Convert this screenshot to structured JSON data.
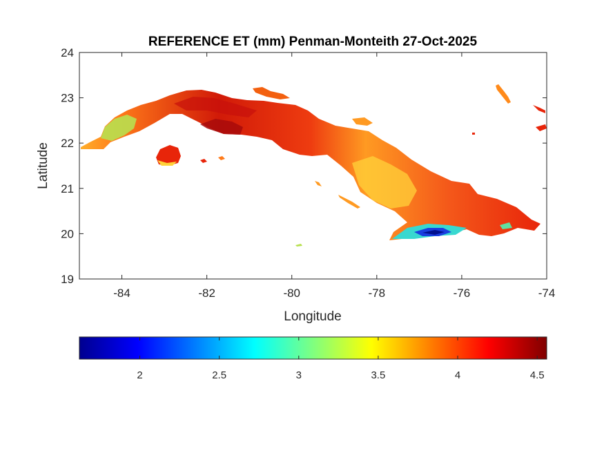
{
  "chart_data": {
    "type": "heatmap",
    "title": "REFERENCE ET (mm) Penman-Monteith 27-Oct-2025",
    "xlabel": "Longitude",
    "ylabel": "Latitude",
    "xlim": [
      -85,
      -74
    ],
    "ylim": [
      19,
      24
    ],
    "x_ticks": [
      -84,
      -82,
      -80,
      -78,
      -76,
      -74
    ],
    "y_ticks": [
      19,
      20,
      21,
      22,
      23,
      24
    ],
    "colorbar": {
      "colormap": "jet",
      "range": [
        1.62,
        4.56
      ],
      "ticks": [
        2,
        2.5,
        3,
        3.5,
        4,
        4.5
      ],
      "placement": "bottom"
    },
    "colors": {
      "background": "#ffffff",
      "dominant_high": "#e8250a",
      "low_area": "#1a3fe0",
      "mid_area": "#f7e43a"
    }
  }
}
